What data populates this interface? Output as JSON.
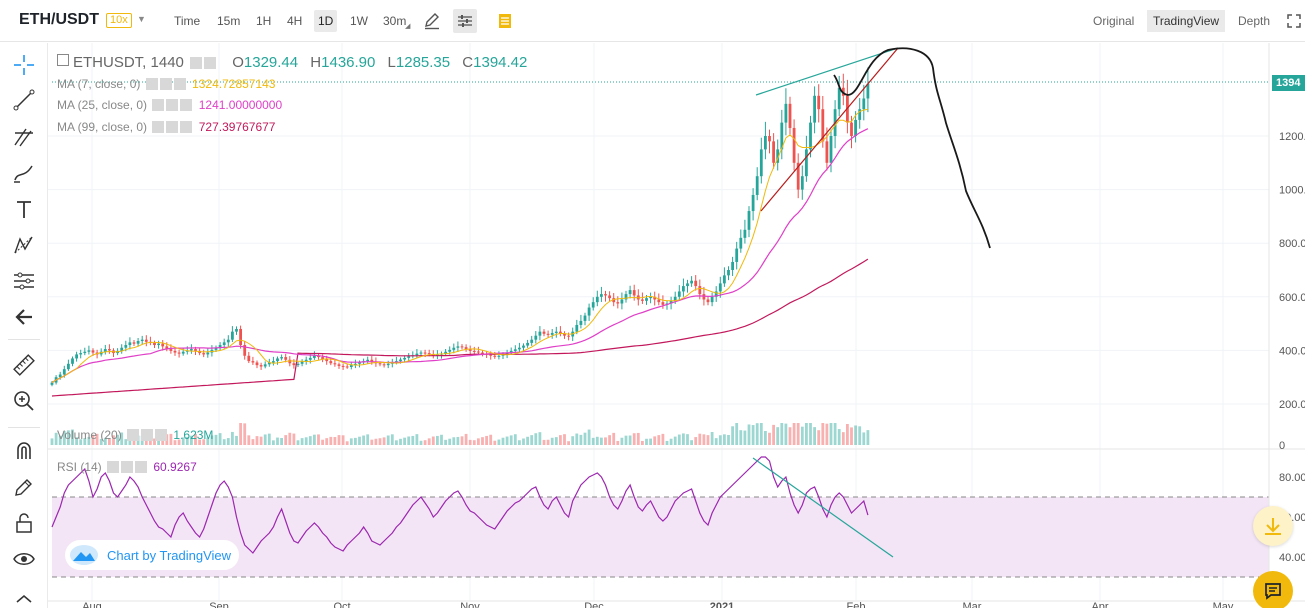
{
  "header": {
    "pair": "ETH/USDT",
    "leverage": "10x",
    "intervals": [
      "Time",
      "15m",
      "1H",
      "4H",
      "1D",
      "1W",
      "30m"
    ],
    "active_interval": "1D",
    "views": [
      "Original",
      "TradingView",
      "Depth"
    ],
    "active_view": "TradingView"
  },
  "legend": {
    "symbol": "ETHUSDT, 1440",
    "open_label": "O",
    "open": "1329.44",
    "high_label": "H",
    "high": "1436.90",
    "low_label": "L",
    "low": "1285.35",
    "close_label": "C",
    "close": "1394.42",
    "ma7_label": "MA (7, close, 0)",
    "ma7_value": "1324.72857143",
    "ma25_label": "MA (25, close, 0)",
    "ma25_value": "1241.00000000",
    "ma99_label": "MA (99, close, 0)",
    "ma99_value": "727.39767677",
    "volume_label": "Volume (20)",
    "volume_value": "1.623M",
    "rsi_label": "RSI (14)",
    "rsi_value": "60.9267"
  },
  "price_tag": "1394",
  "watermark": "Chart by TradingView",
  "colors": {
    "up": "#26a69a",
    "down": "#ef5350",
    "ma7": "#f0b90b",
    "ma25": "#e040c8",
    "ma99": "#c2185b",
    "rsi": "#9c27b0",
    "accent": "#f0b90b"
  },
  "chart_data": {
    "type": "candlestick",
    "x_axis_labels": [
      "Aug",
      "Sep",
      "Oct",
      "Nov",
      "Dec",
      "2021",
      "Feb",
      "Mar",
      "Apr",
      "May"
    ],
    "price_axis_labels": [
      "200.0",
      "400.0",
      "600.0",
      "800.0",
      "1000.0",
      "1200.0"
    ],
    "volume_axis_labels": [
      "0"
    ],
    "rsi_axis_labels": [
      "40.00",
      "60.00",
      "80.00"
    ],
    "rsi_band": [
      30,
      70
    ],
    "closes": [
      280,
      300,
      310,
      330,
      350,
      370,
      385,
      390,
      395,
      400,
      392,
      385,
      395,
      405,
      400,
      390,
      398,
      410,
      420,
      430,
      425,
      435,
      440,
      432,
      428,
      420,
      425,
      415,
      405,
      398,
      392,
      388,
      395,
      400,
      405,
      398,
      390,
      385,
      392,
      402,
      410,
      420,
      430,
      440,
      470,
      480,
      420,
      380,
      360,
      355,
      345,
      340,
      348,
      355,
      360,
      370,
      375,
      365,
      352,
      345,
      350,
      358,
      365,
      372,
      380,
      375,
      368,
      360,
      352,
      348,
      342,
      340,
      338,
      345,
      350,
      355,
      360,
      365,
      358,
      352,
      348,
      345,
      350,
      355,
      360,
      366,
      372,
      378,
      382,
      388,
      392,
      390,
      386,
      380,
      384,
      388,
      395,
      402,
      410,
      415,
      412,
      405,
      398,
      396,
      392,
      388,
      384,
      380,
      376,
      380,
      386,
      392,
      398,
      404,
      410,
      418,
      428,
      440,
      455,
      470,
      462,
      458,
      465,
      470,
      462,
      455,
      452,
      470,
      495,
      510,
      530,
      560,
      580,
      600,
      610,
      605,
      595,
      580,
      575,
      590,
      610,
      625,
      605,
      590,
      585,
      595,
      600,
      590,
      580,
      570,
      575,
      585,
      600,
      620,
      640,
      650,
      660,
      640,
      610,
      590,
      580,
      600,
      620,
      650,
      680,
      700,
      730,
      780,
      820,
      850,
      920,
      980,
      1050,
      1150,
      1200,
      1180,
      1100,
      1150,
      1250,
      1320,
      1230,
      1100,
      1000,
      1050,
      1150,
      1250,
      1350,
      1300,
      1180,
      1100,
      1200,
      1300,
      1380,
      1350,
      1250,
      1200,
      1260,
      1300,
      1340,
      1394.42
    ],
    "rsi": [
      55,
      60,
      65,
      72,
      76,
      78,
      80,
      82,
      84,
      78,
      70,
      74,
      80,
      82,
      78,
      72,
      70,
      73,
      76,
      80,
      78,
      75,
      70,
      66,
      62,
      58,
      55,
      54,
      52,
      50,
      56,
      60,
      62,
      58,
      55,
      52,
      50,
      54,
      60,
      66,
      72,
      76,
      78,
      75,
      70,
      60,
      52,
      46,
      44,
      42,
      45,
      48,
      50,
      52,
      55,
      60,
      64,
      58,
      52,
      48,
      47,
      50,
      53,
      55,
      57,
      55,
      52,
      50,
      47,
      45,
      44,
      43,
      46,
      48,
      50,
      52,
      55,
      52,
      48,
      47,
      46,
      48,
      50,
      52,
      55,
      57,
      60,
      63,
      66,
      68,
      70,
      67,
      64,
      60,
      62,
      65,
      68,
      70,
      72,
      73,
      70,
      66,
      63,
      62,
      60,
      58,
      56,
      55,
      54,
      57,
      60,
      63,
      65,
      67,
      68,
      70,
      72,
      74,
      75,
      70,
      66,
      64,
      68,
      70,
      66,
      62,
      60,
      68,
      72,
      76,
      78,
      80,
      81,
      82,
      80,
      76,
      70,
      66,
      64,
      68,
      73,
      76,
      70,
      65,
      63,
      66,
      68,
      64,
      60,
      58,
      60,
      64,
      68,
      70,
      72,
      73,
      74,
      68,
      62,
      58,
      56,
      62,
      66,
      70,
      72,
      74,
      76,
      78,
      80,
      82,
      84,
      86,
      88,
      90,
      90,
      88,
      80,
      75,
      78,
      80,
      72,
      66,
      62,
      66,
      72,
      74,
      75,
      70,
      64,
      60,
      66,
      70,
      72,
      70,
      66,
      62,
      64,
      66,
      68,
      60.93
    ]
  }
}
